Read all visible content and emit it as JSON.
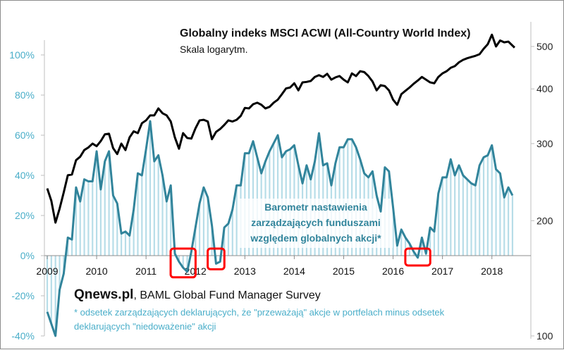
{
  "chart_data": {
    "type": "line",
    "title": "Globalny indeks MSCI ACWI (All-Country World Index)",
    "subtitle": "Skala logarytm.",
    "x_start": "2009-01",
    "frequency": "monthly",
    "x_ticks": [
      "2009",
      "2010",
      "2011",
      "2012",
      "2013",
      "2014",
      "2015",
      "2016",
      "2017",
      "2018"
    ],
    "left_axis": {
      "ticks": [
        "-40%",
        "-20%",
        "0%",
        "20%",
        "40%",
        "60%",
        "80%",
        "100%"
      ],
      "ylim": [
        -40,
        100
      ]
    },
    "right_axis": {
      "scale": "log",
      "ticks": [
        "100",
        "200",
        "300",
        "400",
        "500"
      ]
    },
    "series": [
      {
        "name": "Barometr nastawienia zarządzających funduszami względem globalnych akcji*",
        "axis": "left",
        "style": "line+bars",
        "color": "#31849b",
        "bar_color": "#b7dde8",
        "values": [
          -28,
          -34,
          -40,
          -17,
          -9,
          9,
          8,
          34,
          27,
          38,
          37,
          37,
          52,
          33,
          47,
          52,
          30,
          26,
          11,
          12,
          10,
          23,
          41,
          40,
          53,
          67,
          47,
          50,
          40,
          27,
          35,
          1,
          -3,
          -6,
          -8,
          2,
          14,
          26,
          34,
          29,
          15,
          -4,
          -3,
          14,
          16,
          23,
          35,
          35,
          51,
          51,
          57,
          49,
          41,
          47,
          52,
          56,
          60,
          49,
          52,
          53,
          55,
          45,
          36,
          45,
          38,
          47,
          61,
          45,
          46,
          35,
          46,
          54,
          54,
          58,
          58,
          54,
          48,
          41,
          39,
          42,
          30,
          22,
          44,
          42,
          24,
          5,
          13,
          9,
          6,
          2,
          -1,
          9,
          1,
          14,
          12,
          31,
          39,
          39,
          48,
          40,
          45,
          40,
          38,
          36,
          35,
          45,
          49,
          50,
          55,
          43,
          41,
          29,
          34,
          30
        ]
      },
      {
        "name": "Globalny indeks MSCI ACWI",
        "axis": "right",
        "style": "line",
        "color": "#000000",
        "values": [
          237,
          222,
          198,
          213,
          232,
          254,
          255,
          275,
          280,
          290,
          294,
          300,
          296,
          304,
          315,
          316,
          293,
          284,
          300,
          290,
          310,
          320,
          317,
          334,
          339,
          348,
          348,
          361,
          352,
          348,
          337,
          310,
          292,
          317,
          309,
          308,
          325,
          339,
          340,
          337,
          307,
          319,
          324,
          331,
          339,
          337,
          340,
          347,
          362,
          361,
          369,
          372,
          368,
          361,
          364,
          372,
          378,
          389,
          401,
          403,
          412,
          397,
          414,
          415,
          417,
          426,
          430,
          426,
          433,
          420,
          425,
          428,
          420,
          414,
          434,
          428,
          439,
          437,
          428,
          416,
          397,
          408,
          406,
          397,
          378,
          368,
          389,
          396,
          403,
          411,
          418,
          426,
          420,
          414,
          412,
          426,
          434,
          439,
          447,
          451,
          460,
          466,
          470,
          473,
          476,
          480,
          494,
          506,
          532,
          500,
          516,
          511,
          513,
          497
        ]
      }
    ],
    "highlighted_periods": [
      "2011-08..2011-12",
      "2012-05..2012-07",
      "2016-05..2016-09"
    ],
    "highlight_color": "#ff0000",
    "annotation": [
      "Barometr nastawienia",
      "zarządzających funduszami",
      "względem globalnych akcji*"
    ],
    "source_brand": "Qnews.pl",
    "source_rest": ", BAML Global Fund Manager Survey",
    "footnote": [
      "* odsetek zarządzających deklarujących, że \"przeważają\"  akcje w portfelach minus odsetek",
      "deklarujących \"niedoważenie\" akcji"
    ]
  }
}
